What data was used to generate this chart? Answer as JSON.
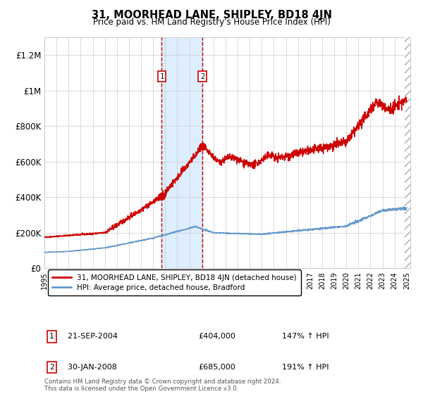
{
  "title": "31, MOORHEAD LANE, SHIPLEY, BD18 4JN",
  "subtitle": "Price paid vs. HM Land Registry's House Price Index (HPI)",
  "x_start_year": 1995,
  "x_end_year": 2025,
  "ylim": [
    0,
    1300000
  ],
  "yticks": [
    0,
    200000,
    400000,
    600000,
    800000,
    1000000,
    1200000
  ],
  "ytick_labels": [
    "£0",
    "£200K",
    "£400K",
    "£600K",
    "£800K",
    "£1M",
    "£1.2M"
  ],
  "sale1_date": 2004.72,
  "sale1_price": 404000,
  "sale1_label": "1",
  "sale1_text": "21-SEP-2004",
  "sale1_price_str": "£404,000",
  "sale1_pct": "147% ↑ HPI",
  "sale2_date": 2008.08,
  "sale2_price": 685000,
  "sale2_label": "2",
  "sale2_text": "30-JAN-2008",
  "sale2_price_str": "£685,000",
  "sale2_pct": "191% ↑ HPI",
  "red_line_color": "#cc0000",
  "blue_line_color": "#6699cc",
  "shade_color": "#ddeeff",
  "hatch_color": "#aaaaaa",
  "grid_color": "#cccccc",
  "legend1": "31, MOORHEAD LANE, SHIPLEY, BD18 4JN (detached house)",
  "legend2": "HPI: Average price, detached house, Bradford",
  "footnote": "Contains HM Land Registry data © Crown copyright and database right 2024.\nThis data is licensed under the Open Government Licence v3.0.",
  "bg_color": "#ffffff"
}
